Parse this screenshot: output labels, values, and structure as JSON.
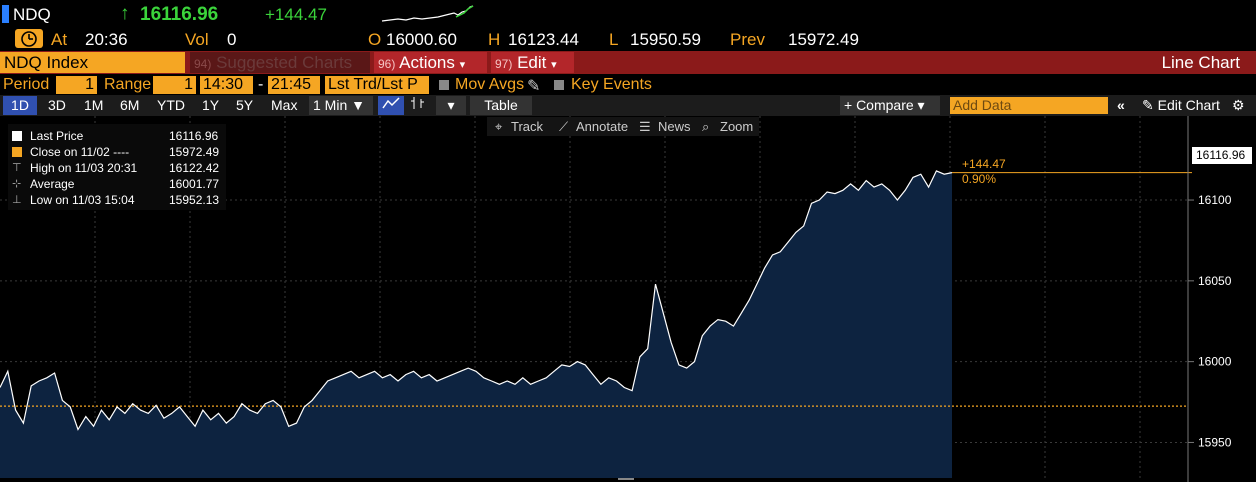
{
  "header": {
    "ticker": "NDQ",
    "last_price": "16116.96",
    "change": "+144.47",
    "at_label": "At",
    "time": "20:36",
    "vol_label": "Vol",
    "volume": "0",
    "open_label": "O",
    "open": "16000.60",
    "high_label": "H",
    "high": "16123.44",
    "low_label": "L",
    "low": "15950.59",
    "prev_label": "Prev",
    "prev": "15972.49"
  },
  "menubar": {
    "security": "NDQ Index",
    "suggested_num": "94)",
    "suggested_label": "Suggested Charts",
    "actions_num": "96)",
    "actions_label": "Actions",
    "edit_num": "97)",
    "edit_label": "Edit",
    "caret": "▾",
    "title": "Line Chart"
  },
  "period_bar": {
    "period_label": "Period",
    "period_value": "1",
    "range_label": "Range",
    "range_value": "1",
    "start_time": "14:30",
    "dash": "-",
    "end_time": "21:45",
    "trade_type": "Lst Trd/Lst P",
    "mov_avgs": "Mov Avgs",
    "key_events": "Key Events"
  },
  "toolbar": {
    "ranges": [
      "1D",
      "3D",
      "1M",
      "6M",
      "YTD",
      "1Y",
      "5Y",
      "Max"
    ],
    "interval": "1 Min ▼",
    "table": "Table",
    "compare": "+ Compare ▾",
    "add_data_placeholder": "Add Data",
    "edit_chart": "✎ Edit Chart",
    "collapse": "«",
    "settings": "⚙"
  },
  "chart_tools": {
    "track": "Track",
    "annotate": "Annotate",
    "news": "News",
    "zoom": "Zoom"
  },
  "legend": [
    {
      "name": "Last Price",
      "value": "16116.96",
      "color": "#ffffff"
    },
    {
      "name": "Close on 11/02 ----",
      "value": "15972.49",
      "color": "#f5a623"
    },
    {
      "name": "High on 11/03 20:31",
      "value": "16122.42",
      "color": "#aaaaaa"
    },
    {
      "name": "Average",
      "value": "16001.77",
      "color": "#aaaaaa"
    },
    {
      "name": "Low on 11/03 15:04",
      "value": "15952.13",
      "color": "#aaaaaa"
    }
  ],
  "annotation": {
    "last_tag": "16116.96",
    "change_abs": "+144.47",
    "change_pct": "0.90%"
  },
  "chart_data": {
    "type": "area",
    "y_ticks": [
      15950,
      16000,
      16050,
      16100
    ],
    "ylim": [
      15928,
      16152
    ],
    "reference_close": 15972.49,
    "series": [
      {
        "values": [
          15984,
          15994,
          15970,
          15962,
          15985,
          15988,
          15990,
          15993,
          15976,
          15972,
          15958,
          15966,
          15960,
          15970,
          15964,
          15972,
          15968,
          15974,
          15970,
          15968,
          15973,
          15965,
          15968,
          15972,
          15966,
          15960,
          15970,
          15964,
          15968,
          15962,
          15966,
          15974,
          15970,
          15968,
          15974,
          15976,
          15972,
          15960,
          15962,
          15972,
          15976,
          15982,
          15988,
          15990,
          15992,
          15994,
          15990,
          15992,
          15994,
          15990,
          15992,
          15988,
          15992,
          15994,
          15990,
          15992,
          15988,
          15990,
          15992,
          15994,
          15996,
          15994,
          15990,
          15988,
          15986,
          15988,
          15986,
          15990,
          15986,
          15988,
          15990,
          15994,
          15998,
          15997,
          16000,
          15998,
          15992,
          15986,
          15990,
          15988,
          15984,
          15982,
          16003,
          16008,
          16048,
          16030,
          16012,
          15998,
          15996,
          16000,
          16016,
          16022,
          16026,
          16025,
          16022,
          16030,
          16038,
          16048,
          16058,
          16066,
          16068,
          16074,
          16080,
          16084,
          16098,
          16100,
          16105,
          16104,
          16106,
          16110,
          16106,
          16112,
          16108,
          16110,
          16106,
          16100,
          16106,
          16114,
          16116,
          16108,
          16118,
          16116,
          16117
        ]
      }
    ]
  }
}
